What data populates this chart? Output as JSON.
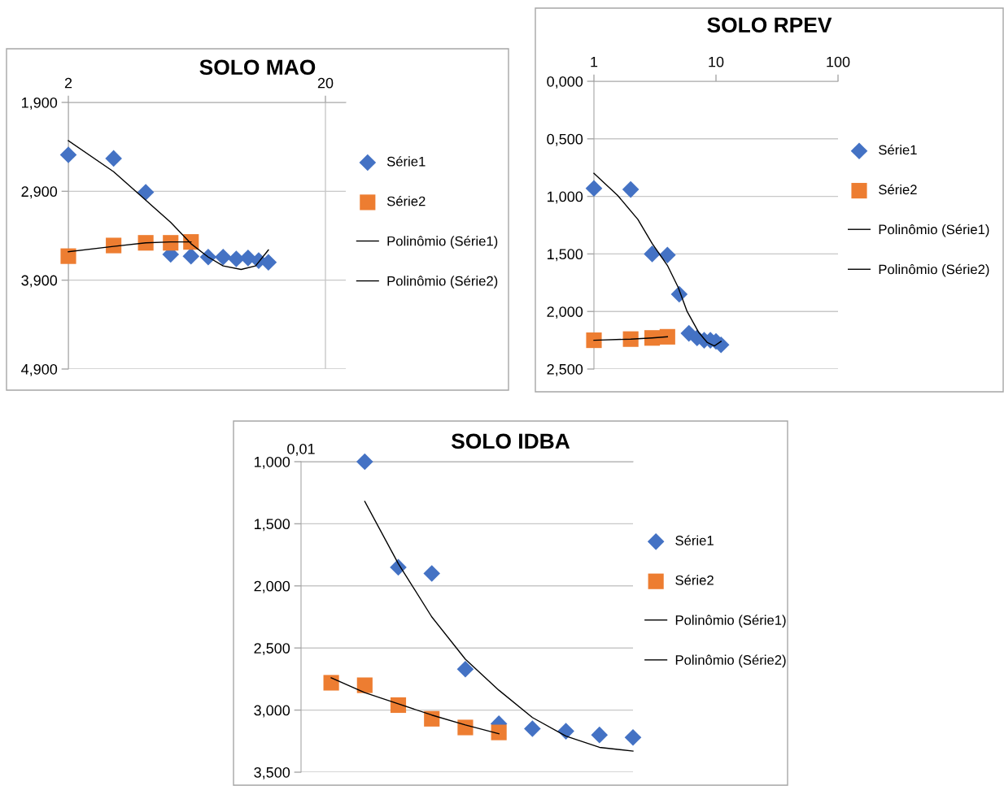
{
  "chart_data": [
    {
      "type": "scatter",
      "title": "SOLO MAO",
      "log": "x",
      "grid": true,
      "legend": "right",
      "xlim": [
        2,
        24
      ],
      "xticks": [
        2,
        20
      ],
      "ylim": [
        4.9,
        1.9
      ],
      "yticks": [
        {
          "value": 1.9,
          "label": "1,900"
        },
        {
          "value": 2.9,
          "label": "2,900"
        },
        {
          "value": 3.9,
          "label": "3,900"
        },
        {
          "value": 4.9,
          "label": "4,900"
        }
      ],
      "series": [
        {
          "name": "Série1",
          "marker": "diamond",
          "color": "#4472c4",
          "x": [
            2,
            3,
            4,
            5,
            6,
            7,
            8,
            9,
            10,
            11,
            12
          ],
          "values": [
            2.49,
            2.53,
            2.91,
            3.61,
            3.63,
            3.64,
            3.64,
            3.66,
            3.65,
            3.68,
            3.7
          ]
        },
        {
          "name": "Série2",
          "marker": "square",
          "color": "#ed7d31",
          "x": [
            2,
            3,
            4,
            5,
            6
          ],
          "values": [
            3.63,
            3.51,
            3.48,
            3.48,
            3.47
          ]
        },
        {
          "name": "Polinômio (Série1)",
          "type": "line",
          "line_style": "solid",
          "color": "#000000",
          "x": [
            2,
            3,
            4,
            5,
            6,
            7,
            8,
            9.4,
            10.7,
            12
          ],
          "values": [
            2.33,
            2.68,
            3.0,
            3.25,
            3.49,
            3.64,
            3.74,
            3.78,
            3.74,
            3.56
          ]
        },
        {
          "name": "Polinômio (Série2)",
          "type": "line",
          "line_style": "solid",
          "color": "#000000",
          "x": [
            2,
            3,
            4,
            5,
            6
          ],
          "values": [
            3.58,
            3.52,
            3.48,
            3.47,
            3.47
          ]
        }
      ]
    },
    {
      "type": "scatter",
      "title": "SOLO RPEV",
      "log": "x",
      "grid": "y",
      "legend": "right",
      "xlim": [
        1,
        100
      ],
      "xticks": [
        1,
        10,
        100
      ],
      "ylim": [
        2.5,
        0
      ],
      "yticks": [
        {
          "value": 0,
          "label": "0,000"
        },
        {
          "value": 0.5,
          "label": "0,500"
        },
        {
          "value": 1.0,
          "label": "1,000"
        },
        {
          "value": 1.5,
          "label": "1,500"
        },
        {
          "value": 2.0,
          "label": "2,000"
        },
        {
          "value": 2.5,
          "label": "2,500"
        }
      ],
      "series": [
        {
          "name": "Série1",
          "marker": "diamond",
          "color": "#4472c4",
          "x": [
            1,
            2,
            3,
            4,
            5,
            6,
            7,
            8,
            9,
            10,
            11
          ],
          "values": [
            0.93,
            0.94,
            1.5,
            1.51,
            1.85,
            2.19,
            2.23,
            2.25,
            2.25,
            2.26,
            2.29
          ]
        },
        {
          "name": "Série2",
          "marker": "square",
          "color": "#ed7d31",
          "x": [
            1,
            2,
            3,
            4
          ],
          "values": [
            2.25,
            2.24,
            2.23,
            2.22
          ]
        },
        {
          "name": "Polinômio (Série1)",
          "type": "line",
          "line_style": "solid",
          "color": "#000000",
          "x": [
            1,
            1.56,
            2.29,
            3,
            4,
            4.9,
            5.8,
            7.2,
            8.5,
            9.7,
            11
          ],
          "values": [
            0.8,
            0.99,
            1.2,
            1.41,
            1.6,
            1.79,
            2.0,
            2.18,
            2.27,
            2.3,
            2.26
          ]
        },
        {
          "name": "Polinômio (Série2)",
          "type": "line",
          "line_style": "solid",
          "color": "#000000",
          "x": [
            1,
            2,
            3,
            4
          ],
          "values": [
            2.25,
            2.24,
            2.23,
            2.22
          ]
        }
      ]
    },
    {
      "type": "scatter",
      "title": "SOLO IDBA",
      "grid": "y",
      "legend": "right",
      "annotations": [
        "0,01"
      ],
      "categories": [
        null,
        null,
        null,
        null,
        null,
        null,
        null,
        null,
        null,
        null
      ],
      "ylim": [
        3.5,
        1.0
      ],
      "yticks": [
        {
          "value": 1.0,
          "label": "1,000"
        },
        {
          "value": 1.5,
          "label": "1,500"
        },
        {
          "value": 2.0,
          "label": "2,000"
        },
        {
          "value": 2.5,
          "label": "2,500"
        },
        {
          "value": 3.0,
          "label": "3,000"
        },
        {
          "value": 3.5,
          "label": "3,500"
        }
      ],
      "series": [
        {
          "name": "Série1",
          "marker": "diamond",
          "color": "#4472c4",
          "values": [
            null,
            1.0,
            1.85,
            1.9,
            2.67,
            3.11,
            3.15,
            3.17,
            3.2,
            3.22
          ]
        },
        {
          "name": "Série2",
          "marker": "square",
          "color": "#ed7d31",
          "values": [
            2.78,
            2.8,
            2.96,
            3.07,
            3.14,
            3.18,
            null,
            null,
            null,
            null
          ]
        },
        {
          "name": "Polinômio (Série1)",
          "type": "line",
          "line_style": "solid",
          "color": "#000000",
          "values": [
            null,
            1.32,
            1.82,
            2.25,
            2.59,
            2.84,
            3.06,
            3.21,
            3.3,
            3.33
          ]
        },
        {
          "name": "Polinômio (Série2)",
          "type": "line",
          "line_style": "solid",
          "color": "#000000",
          "values": [
            2.74,
            2.86,
            2.95,
            3.04,
            3.12,
            3.19,
            null,
            null,
            null,
            null
          ]
        }
      ]
    }
  ]
}
